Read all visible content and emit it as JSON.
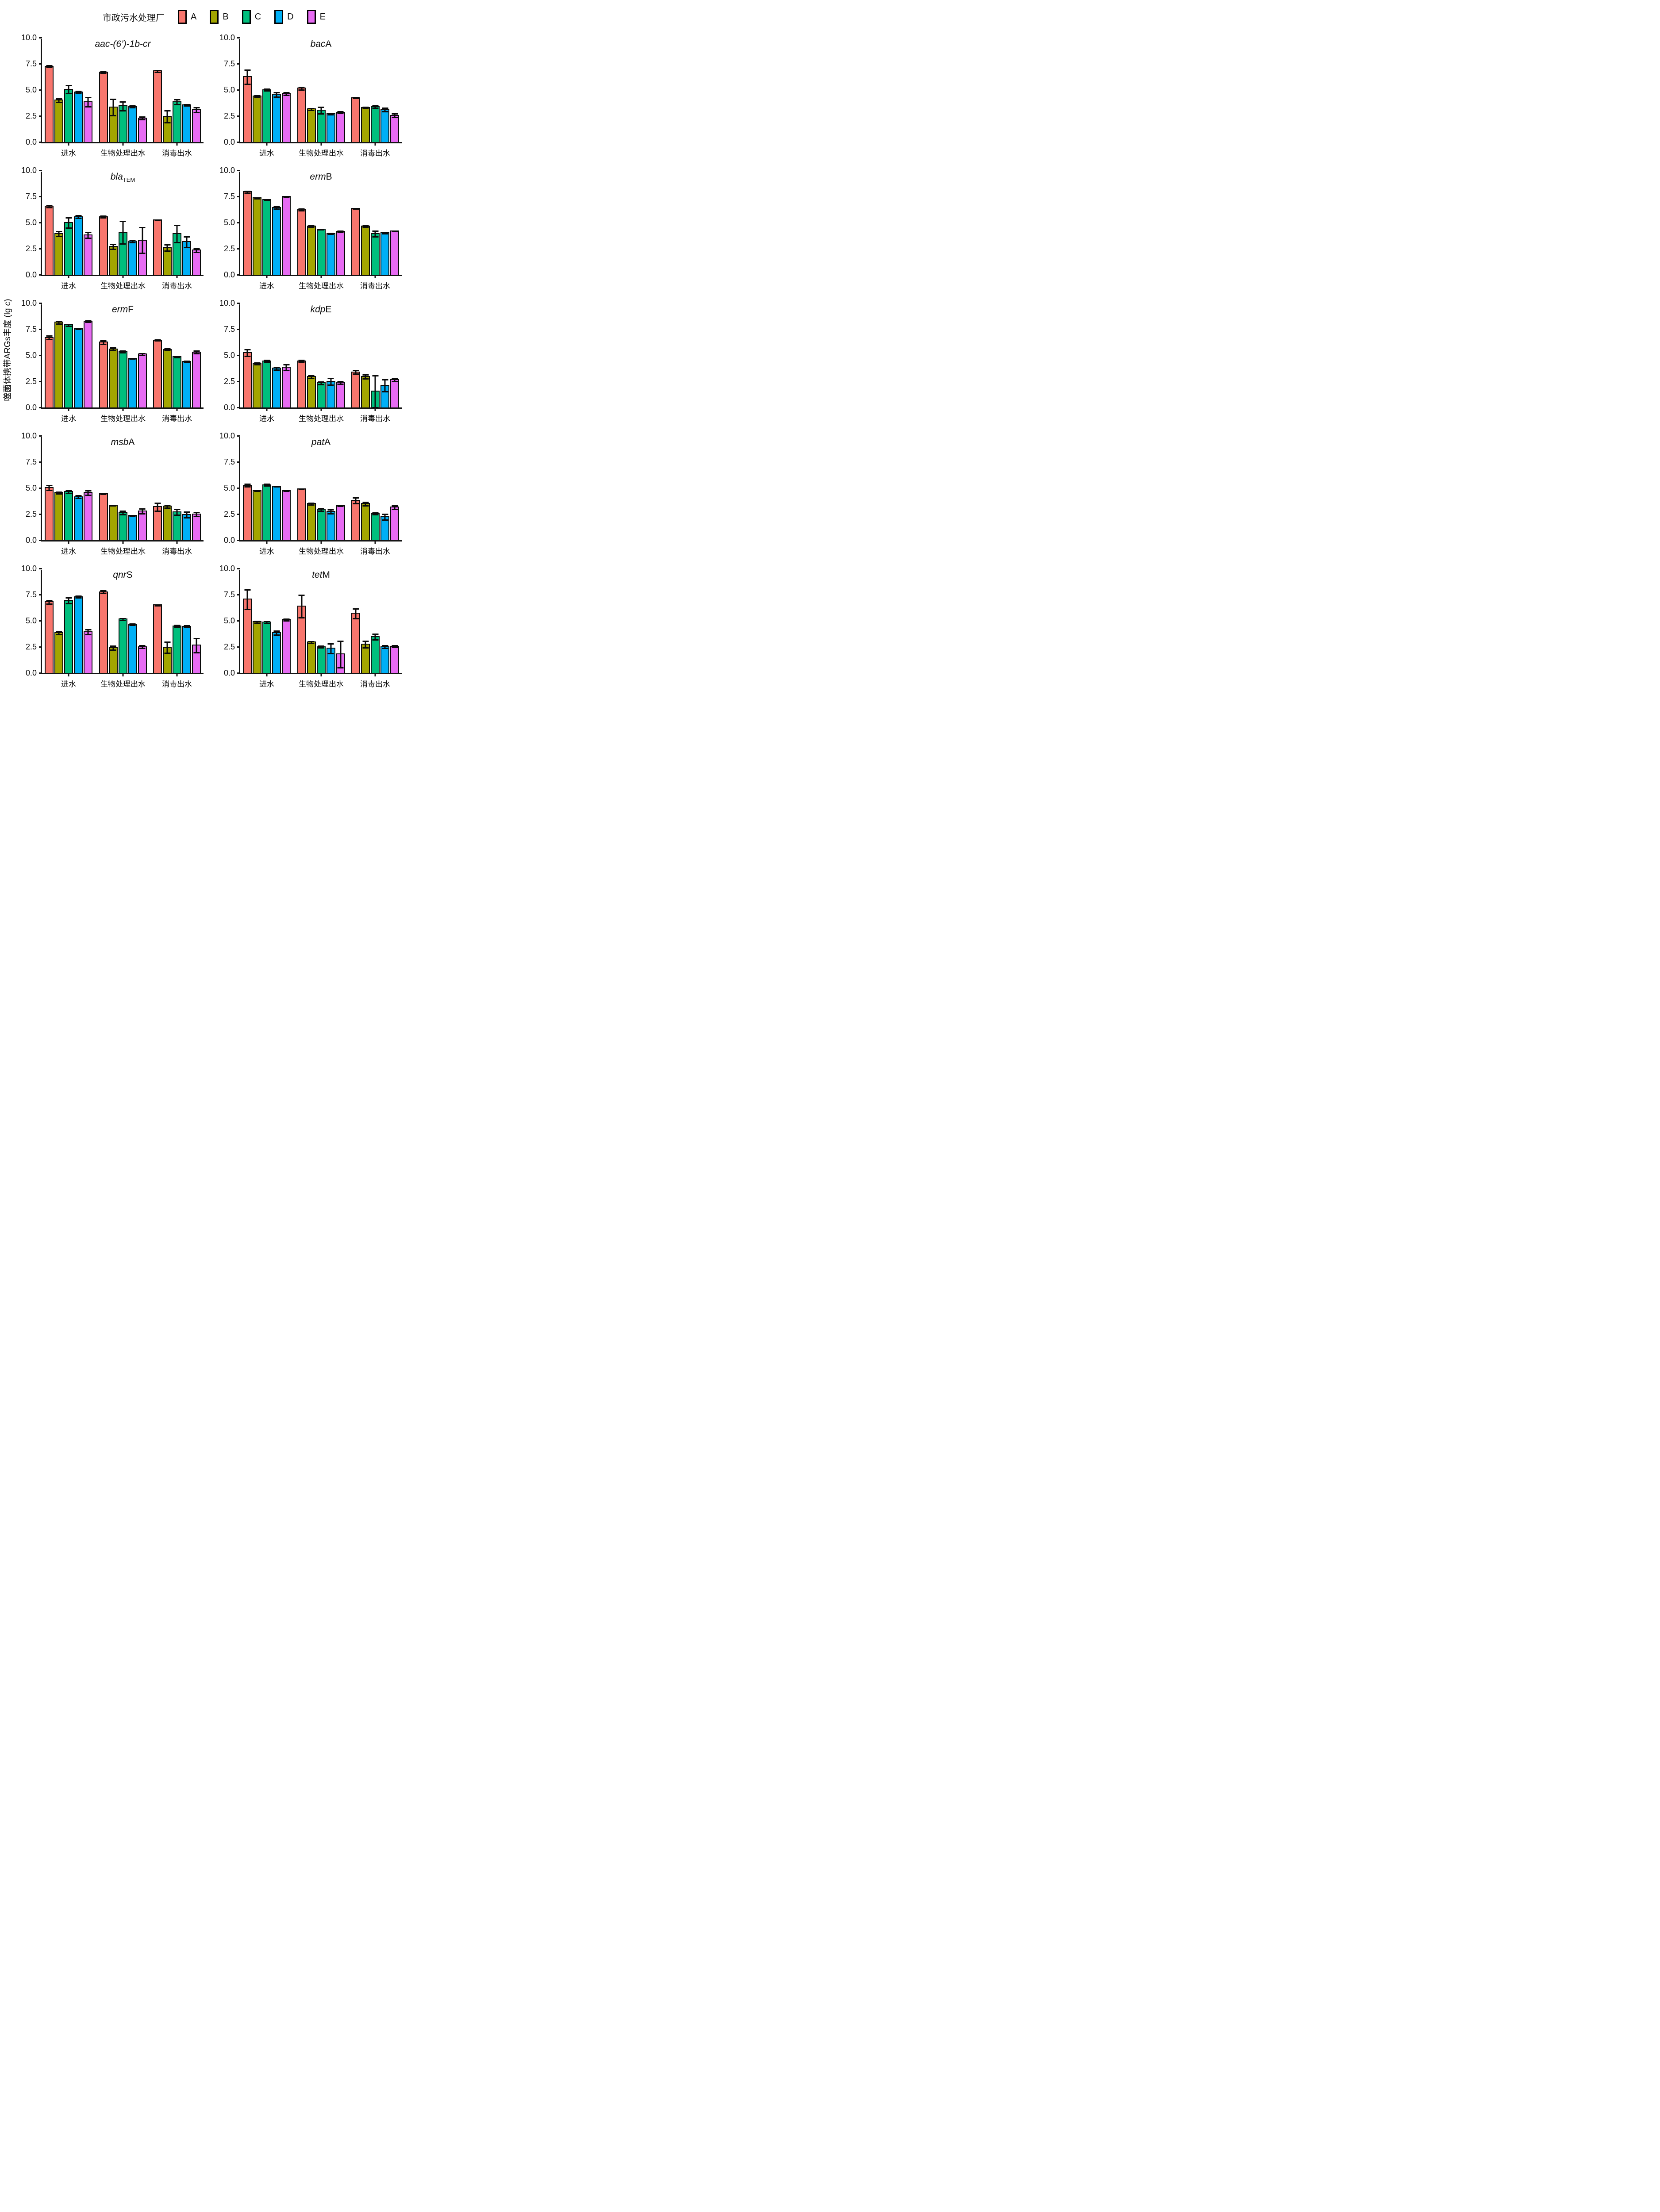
{
  "legend": {
    "title": "市政污水处理厂",
    "items": [
      {
        "label": "A",
        "color": "#F8766D"
      },
      {
        "label": "B",
        "color": "#A3A500"
      },
      {
        "label": "C",
        "color": "#00BF7D"
      },
      {
        "label": "D",
        "color": "#00B0F6"
      },
      {
        "label": "E",
        "color": "#E76BF3"
      }
    ]
  },
  "y_axis": {
    "label": "噬菌体携带ARGs丰度 (lg c)",
    "label_italic_tail": "c",
    "tick_labels": [
      "0.0",
      "2.5",
      "5.0",
      "7.5",
      "10.0"
    ],
    "tick_values": [
      0,
      2.5,
      5,
      7.5,
      10
    ],
    "max": 10
  },
  "x_categories": [
    "进水",
    "生物处理出水",
    "消毒出水"
  ],
  "chart_data": [
    {
      "type": "bar",
      "title": "aac-(6’)-1b-cr",
      "title_parts": [
        {
          "text": "aac-(6’)-1b-cr",
          "style": "italic"
        }
      ],
      "categories": [
        "进水",
        "生物处理出水",
        "消毒出水"
      ],
      "ylim": [
        0,
        10
      ],
      "series": [
        {
          "name": "A",
          "values": [
            7.3,
            6.75,
            6.85
          ],
          "errors": [
            0.1,
            0.1,
            0.1
          ]
        },
        {
          "name": "B",
          "values": [
            4.05,
            3.4,
            2.5
          ],
          "errors": [
            0.2,
            0.8,
            0.6
          ]
        },
        {
          "name": "C",
          "values": [
            5.1,
            3.5,
            3.9
          ],
          "errors": [
            0.4,
            0.45,
            0.25
          ]
        },
        {
          "name": "D",
          "values": [
            4.85,
            3.45,
            3.6
          ],
          "errors": [
            0.1,
            0.1,
            0.1
          ]
        },
        {
          "name": "E",
          "values": [
            3.9,
            2.35,
            3.15
          ],
          "errors": [
            0.45,
            0.15,
            0.25
          ]
        }
      ]
    },
    {
      "type": "bar",
      "title": "bacA",
      "title_parts": [
        {
          "text": "bac",
          "style": "italic"
        },
        {
          "text": "A",
          "style": "normal"
        }
      ],
      "categories": [
        "进水",
        "生物处理出水",
        "消毒出水"
      ],
      "ylim": [
        0,
        10
      ],
      "series": [
        {
          "name": "A",
          "values": [
            6.3,
            5.2,
            4.3
          ],
          "errors": [
            0.7,
            0.15,
            0.05
          ]
        },
        {
          "name": "B",
          "values": [
            4.45,
            3.2,
            3.35
          ],
          "errors": [
            0.1,
            0.1,
            0.1
          ]
        },
        {
          "name": "C",
          "values": [
            5.05,
            3.1,
            3.45
          ],
          "errors": [
            0.1,
            0.35,
            0.15
          ]
        },
        {
          "name": "D",
          "values": [
            4.6,
            2.75,
            3.15
          ],
          "errors": [
            0.25,
            0.1,
            0.2
          ]
        },
        {
          "name": "E",
          "values": [
            4.7,
            2.9,
            2.6
          ],
          "errors": [
            0.15,
            0.1,
            0.2
          ]
        }
      ]
    },
    {
      "type": "bar",
      "title": "blaTEM",
      "title_parts": [
        {
          "text": "bla",
          "style": "italic"
        },
        {
          "text": "TEM",
          "style": "subscript"
        }
      ],
      "categories": [
        "进水",
        "生物处理出水",
        "消毒出水"
      ],
      "ylim": [
        0,
        10
      ],
      "series": [
        {
          "name": "A",
          "values": [
            6.6,
            5.6,
            5.3
          ],
          "errors": [
            0.1,
            0.1,
            0.05
          ]
        },
        {
          "name": "B",
          "values": [
            4.0,
            2.75,
            2.65
          ],
          "errors": [
            0.25,
            0.25,
            0.3
          ]
        },
        {
          "name": "C",
          "values": [
            5.05,
            4.1,
            4.0
          ],
          "errors": [
            0.5,
            1.1,
            0.85
          ]
        },
        {
          "name": "D",
          "values": [
            5.6,
            3.25,
            3.2
          ],
          "errors": [
            0.15,
            0.1,
            0.55
          ]
        },
        {
          "name": "E",
          "values": [
            3.85,
            3.35,
            2.4
          ],
          "errors": [
            0.3,
            1.25,
            0.2
          ]
        }
      ]
    },
    {
      "type": "bar",
      "title": "ermB",
      "title_parts": [
        {
          "text": "erm",
          "style": "italic"
        },
        {
          "text": "B",
          "style": "normal"
        }
      ],
      "categories": [
        "进水",
        "生物处理出水",
        "消毒出水"
      ],
      "ylim": [
        0,
        10
      ],
      "series": [
        {
          "name": "A",
          "values": [
            8.0,
            6.3,
            6.4
          ],
          "errors": [
            0.1,
            0.1,
            0.05
          ]
        },
        {
          "name": "B",
          "values": [
            7.4,
            4.7,
            4.7
          ],
          "errors": [
            0.05,
            0.1,
            0.1
          ]
        },
        {
          "name": "C",
          "values": [
            7.25,
            4.4,
            4.0
          ],
          "errors": [
            0.05,
            0.05,
            0.3
          ]
        },
        {
          "name": "D",
          "values": [
            6.5,
            4.0,
            4.05
          ],
          "errors": [
            0.15,
            0.05,
            0.05
          ]
        },
        {
          "name": "E",
          "values": [
            7.55,
            4.2,
            4.25
          ],
          "errors": [
            0.05,
            0.1,
            0.05
          ]
        }
      ]
    },
    {
      "type": "bar",
      "title": "ermF",
      "title_parts": [
        {
          "text": "erm",
          "style": "italic"
        },
        {
          "text": "F",
          "style": "normal"
        }
      ],
      "categories": [
        "进水",
        "生物处理出水",
        "消毒出水"
      ],
      "ylim": [
        0,
        10
      ],
      "series": [
        {
          "name": "A",
          "values": [
            6.75,
            6.3,
            6.5
          ],
          "errors": [
            0.2,
            0.2,
            0.05
          ]
        },
        {
          "name": "B",
          "values": [
            8.2,
            5.65,
            5.6
          ],
          "errors": [
            0.15,
            0.15,
            0.1
          ]
        },
        {
          "name": "C",
          "values": [
            7.95,
            5.4,
            4.9
          ],
          "errors": [
            0.1,
            0.1,
            0.05
          ]
        },
        {
          "name": "D",
          "values": [
            7.6,
            4.75,
            4.45
          ],
          "errors": [
            0.05,
            0.05,
            0.1
          ]
        },
        {
          "name": "E",
          "values": [
            8.3,
            5.15,
            5.35
          ],
          "errors": [
            0.1,
            0.1,
            0.15
          ]
        }
      ]
    },
    {
      "type": "bar",
      "title": "kdpE",
      "title_parts": [
        {
          "text": "kdp",
          "style": "italic"
        },
        {
          "text": "E",
          "style": "normal"
        }
      ],
      "categories": [
        "进水",
        "生物处理出水",
        "消毒出水"
      ],
      "ylim": [
        0,
        10
      ],
      "series": [
        {
          "name": "A",
          "values": [
            5.3,
            4.5,
            3.45
          ],
          "errors": [
            0.35,
            0.1,
            0.2
          ]
        },
        {
          "name": "B",
          "values": [
            4.25,
            3.0,
            3.0
          ],
          "errors": [
            0.1,
            0.15,
            0.2
          ]
        },
        {
          "name": "C",
          "values": [
            4.5,
            2.4,
            1.6
          ],
          "errors": [
            0.1,
            0.15,
            1.55
          ]
        },
        {
          "name": "D",
          "values": [
            3.8,
            2.55,
            2.15
          ],
          "errors": [
            0.15,
            0.35,
            0.6
          ]
        },
        {
          "name": "E",
          "values": [
            3.9,
            2.45,
            2.7
          ],
          "errors": [
            0.3,
            0.15,
            0.15
          ]
        }
      ]
    },
    {
      "type": "bar",
      "title": "msbA",
      "title_parts": [
        {
          "text": "msb",
          "style": "italic"
        },
        {
          "text": "A",
          "style": "normal"
        }
      ],
      "categories": [
        "进水",
        "生物处理出水",
        "消毒出水"
      ],
      "ylim": [
        0,
        10
      ],
      "series": [
        {
          "name": "A",
          "values": [
            5.1,
            4.5,
            3.25
          ],
          "errors": [
            0.25,
            0.05,
            0.4
          ]
        },
        {
          "name": "B",
          "values": [
            4.6,
            3.4,
            3.3
          ],
          "errors": [
            0.1,
            0.05,
            0.15
          ]
        },
        {
          "name": "C",
          "values": [
            4.7,
            2.7,
            2.75
          ],
          "errors": [
            0.15,
            0.2,
            0.3
          ]
        },
        {
          "name": "D",
          "values": [
            4.2,
            2.4,
            2.5
          ],
          "errors": [
            0.15,
            0.05,
            0.3
          ]
        },
        {
          "name": "E",
          "values": [
            4.6,
            2.85,
            2.55
          ],
          "errors": [
            0.25,
            0.25,
            0.2
          ]
        }
      ]
    },
    {
      "type": "bar",
      "title": "patA",
      "title_parts": [
        {
          "text": "pat",
          "style": "italic"
        },
        {
          "text": "A",
          "style": "normal"
        }
      ],
      "categories": [
        "进水",
        "生物处理出水",
        "消毒出水"
      ],
      "ylim": [
        0,
        10
      ],
      "series": [
        {
          "name": "A",
          "values": [
            5.3,
            4.95,
            3.85
          ],
          "errors": [
            0.15,
            0.05,
            0.3
          ]
        },
        {
          "name": "B",
          "values": [
            4.8,
            3.55,
            3.55
          ],
          "errors": [
            0.05,
            0.1,
            0.2
          ]
        },
        {
          "name": "C",
          "values": [
            5.35,
            3.0,
            2.6
          ],
          "errors": [
            0.1,
            0.15,
            0.1
          ]
        },
        {
          "name": "D",
          "values": [
            5.2,
            2.8,
            2.3
          ],
          "errors": [
            0.05,
            0.2,
            0.3
          ]
        },
        {
          "name": "E",
          "values": [
            4.8,
            3.35,
            3.2
          ],
          "errors": [
            0.05,
            0.05,
            0.2
          ]
        }
      ]
    },
    {
      "type": "bar",
      "title": "qnrS",
      "title_parts": [
        {
          "text": "qnr",
          "style": "italic"
        },
        {
          "text": "S",
          "style": "normal"
        }
      ],
      "categories": [
        "进水",
        "生物处理出水",
        "消毒出水"
      ],
      "ylim": [
        0,
        10
      ],
      "series": [
        {
          "name": "A",
          "values": [
            6.85,
            7.8,
            6.55
          ],
          "errors": [
            0.2,
            0.15,
            0.05
          ]
        },
        {
          "name": "B",
          "values": [
            3.9,
            2.45,
            2.5
          ],
          "errors": [
            0.15,
            0.2,
            0.55
          ]
        },
        {
          "name": "C",
          "values": [
            7.0,
            5.2,
            4.55
          ],
          "errors": [
            0.3,
            0.1,
            0.1
          ]
        },
        {
          "name": "D",
          "values": [
            7.35,
            4.7,
            4.5
          ],
          "errors": [
            0.1,
            0.1,
            0.1
          ]
        },
        {
          "name": "E",
          "values": [
            4.0,
            2.55,
            2.7
          ],
          "errors": [
            0.25,
            0.15,
            0.7
          ]
        }
      ]
    },
    {
      "type": "bar",
      "title": "tetM",
      "title_parts": [
        {
          "text": "tet",
          "style": "italic"
        },
        {
          "text": "M",
          "style": "normal"
        }
      ],
      "categories": [
        "进水",
        "生物处理出水",
        "消毒出水"
      ],
      "ylim": [
        0,
        10
      ],
      "series": [
        {
          "name": "A",
          "values": [
            7.1,
            6.45,
            5.75
          ],
          "errors": [
            0.95,
            1.1,
            0.5
          ]
        },
        {
          "name": "B",
          "values": [
            4.95,
            3.0,
            2.8
          ],
          "errors": [
            0.1,
            0.1,
            0.35
          ]
        },
        {
          "name": "C",
          "values": [
            4.9,
            2.55,
            3.5
          ],
          "errors": [
            0.1,
            0.1,
            0.3
          ]
        },
        {
          "name": "D",
          "values": [
            3.9,
            2.4,
            2.55
          ],
          "errors": [
            0.2,
            0.5,
            0.15
          ]
        },
        {
          "name": "E",
          "values": [
            5.15,
            1.85,
            2.6
          ],
          "errors": [
            0.1,
            1.3,
            0.1
          ]
        }
      ]
    }
  ]
}
